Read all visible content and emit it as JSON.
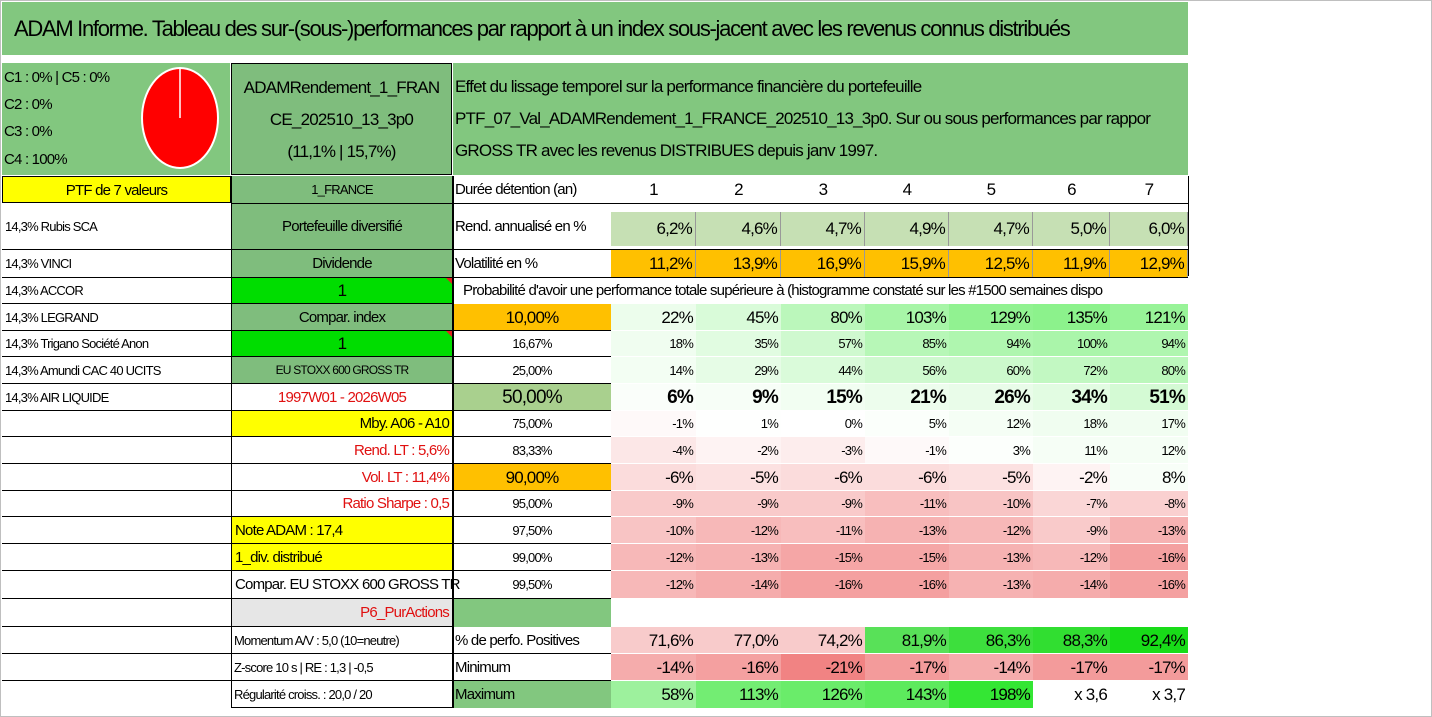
{
  "title": "ADAM Informe. Tableau des sur-(sous-)performances par rapport à un index sous-jacent avec les revenus connus distribués",
  "pie_legend": [
    "C1 : 0% | C5 : 0%",
    "C2 : 0%",
    "C3 : 0%",
    "C4 : 100%"
  ],
  "fund_box": [
    "ADAMRendement_1_FRAN",
    "CE_202510_13_3p0",
    "(11,1% | 15,7%)"
  ],
  "description": [
    "Effet du lissage temporel sur la performance financière du portefeuille",
    "PTF_07_Val_ADAMRendement_1_FRANCE_202510_13_3p0. Sur ou sous performances par rappor",
    "GROSS TR avec les revenus DISTRIBUES depuis janv 1997."
  ],
  "ptf_label": "PTF de 7 valeurs",
  "holdings": [
    "14,3% Rubis SCA",
    "14,3% VINCI",
    "14,3% ACCOR",
    "14,3% LEGRAND",
    "14,3% Trigano Société Anon",
    "14,3% Amundi CAC 40 UCITS",
    "14,3% AIR LIQUIDE"
  ],
  "mid": {
    "france": "1_FRANCE",
    "diversified": "Portefeuille diversifié",
    "dividend": "Dividende",
    "one_a": "1",
    "compar_index": "Compar. index",
    "one_b": "1",
    "index_name": "EU STOXX 600 GROSS TR",
    "period": "1997W01 - 2026W05",
    "mby": "Mby. A06 - A10",
    "rend_lt": "Rend. LT : 5,6%",
    "vol_lt": "Vol. LT : 11,4%",
    "sharpe": "Ratio Sharpe : 0,5",
    "note": "Note ADAM : 17,4",
    "div": "1_div. distribué",
    "compar_full": "Compar. EU STOXX 600 GROSS TR",
    "p6": "P6_PurActions",
    "momentum": "Momentum A/V : 5,0 (10=neutre)",
    "zscore": "Z-score 10 s | RE : 1,3 | -0,5",
    "regularite": "Régularité croiss. : 20,0 / 20"
  },
  "table": {
    "duration_label": "Durée détention (an)",
    "years": [
      "1",
      "2",
      "3",
      "4",
      "5",
      "6",
      "7"
    ],
    "rend_label": "Rend. annualisé en %",
    "rend": [
      "6,2%",
      "4,6%",
      "4,7%",
      "4,9%",
      "4,7%",
      "5,0%",
      "6,0%"
    ],
    "vol_label": "Volatilité en %",
    "vol": [
      "11,2%",
      "13,9%",
      "16,9%",
      "15,9%",
      "12,5%",
      "11,9%",
      "12,9%"
    ],
    "prob_header": "Probabilité d'avoir une performance totale supérieure à (histogramme constaté sur les #1500 semaines dispo",
    "prob_rows": [
      {
        "pct": "10,00%",
        "vals": [
          "22%",
          "45%",
          "80%",
          "103%",
          "129%",
          "135%",
          "121%"
        ]
      },
      {
        "pct": "16,67%",
        "vals": [
          "18%",
          "35%",
          "57%",
          "85%",
          "94%",
          "100%",
          "94%"
        ]
      },
      {
        "pct": "25,00%",
        "vals": [
          "14%",
          "29%",
          "44%",
          "56%",
          "60%",
          "72%",
          "80%"
        ]
      },
      {
        "pct": "50,00%",
        "vals": [
          "6%",
          "9%",
          "15%",
          "21%",
          "26%",
          "34%",
          "51%"
        ]
      },
      {
        "pct": "75,00%",
        "vals": [
          "-1%",
          "1%",
          "0%",
          "5%",
          "12%",
          "18%",
          "17%"
        ]
      },
      {
        "pct": "83,33%",
        "vals": [
          "-4%",
          "-2%",
          "-3%",
          "-1%",
          "3%",
          "11%",
          "12%"
        ]
      },
      {
        "pct": "90,00%",
        "vals": [
          "-6%",
          "-5%",
          "-6%",
          "-6%",
          "-5%",
          "-2%",
          "8%"
        ]
      },
      {
        "pct": "95,00%",
        "vals": [
          "-9%",
          "-9%",
          "-9%",
          "-11%",
          "-10%",
          "-7%",
          "-8%"
        ]
      },
      {
        "pct": "97,50%",
        "vals": [
          "-10%",
          "-12%",
          "-11%",
          "-13%",
          "-12%",
          "-9%",
          "-13%"
        ]
      },
      {
        "pct": "99,00%",
        "vals": [
          "-12%",
          "-13%",
          "-15%",
          "-15%",
          "-13%",
          "-12%",
          "-16%"
        ]
      },
      {
        "pct": "99,50%",
        "vals": [
          "-12%",
          "-14%",
          "-16%",
          "-16%",
          "-13%",
          "-14%",
          "-16%"
        ]
      }
    ],
    "pos_label": "% de perfo. Positives",
    "pos": [
      "71,6%",
      "77,0%",
      "74,2%",
      "81,9%",
      "86,3%",
      "88,3%",
      "92,4%"
    ],
    "min_label": "Minimum",
    "min": [
      "-14%",
      "-16%",
      "-21%",
      "-17%",
      "-14%",
      "-17%",
      "-17%"
    ],
    "max_label": "Maximum",
    "max": [
      "58%",
      "113%",
      "126%",
      "143%",
      "198%",
      "x 3,6",
      "x 3,7"
    ]
  },
  "colors": {
    "title_green": "#82c77f",
    "yellow": "#ffff00",
    "bright_green": "#00dd00",
    "orange": "#ffc000",
    "red_text": "#e01010",
    "pie_red": "#ff0000"
  }
}
